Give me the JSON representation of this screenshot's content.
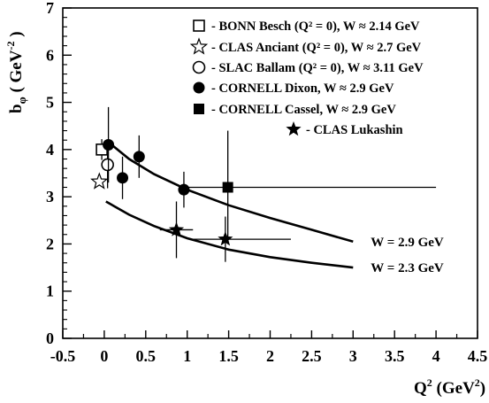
{
  "chart_data": {
    "type": "scatter",
    "xlim": [
      -0.5,
      4.5
    ],
    "ylim": [
      0,
      7
    ],
    "x_ticks": [
      "-0.5",
      "0",
      "0.5",
      "1",
      "1.5",
      "2",
      "2.5",
      "3",
      "3.5",
      "4",
      "4.5"
    ],
    "y_ticks": [
      "0",
      "1",
      "2",
      "3",
      "4",
      "5",
      "6",
      "7"
    ],
    "xlabel": {
      "base": "Q",
      "sup1": "2",
      "mid": " (GeV",
      "sup2": "2",
      "end": ")"
    },
    "ylabel": {
      "base": "b",
      "sub": "φ",
      "mid": " ( GeV",
      "sup": "-2",
      "end": " )"
    },
    "grid": false,
    "legend_position": "top-right",
    "series": [
      {
        "name": "- BONN Besch (Q² = 0), W ≈ 2.14 GeV",
        "marker": "open-square",
        "points": [
          {
            "x": -0.03,
            "y": 4.0,
            "yerr": 0.22
          }
        ]
      },
      {
        "name": "- CLAS Anciant (Q² = 0), W ≈ 2.7 GeV",
        "marker": "open-star",
        "points": [
          {
            "x": -0.06,
            "y": 3.32,
            "yerr": 0
          }
        ]
      },
      {
        "name": "- SLAC Ballam (Q² = 0), W ≈ 3.11 GeV",
        "marker": "open-circle",
        "points": [
          {
            "x": 0.04,
            "y": 3.68,
            "yerr": 0.5
          }
        ]
      },
      {
        "name": "- CORNELL Dixon, W ≈ 2.9 GeV",
        "marker": "filled-circle",
        "points": [
          {
            "x": 0.05,
            "y": 4.1,
            "yerr": 0.8
          },
          {
            "x": 0.22,
            "y": 3.4,
            "yerr": 0.45
          },
          {
            "x": 0.42,
            "y": 3.85,
            "yerr": 0.45
          },
          {
            "x": 0.96,
            "y": 3.15,
            "yerr": 0.38
          }
        ]
      },
      {
        "name": "- CORNELL Cassel, W ≈ 2.9 GeV",
        "marker": "filled-square",
        "points": [
          {
            "x": 1.49,
            "y": 3.2,
            "yerr": 1.2,
            "xerr": [
              1.0,
              4.0
            ]
          }
        ]
      },
      {
        "name": "- CLAS Lukashin",
        "marker": "filled-star",
        "points": [
          {
            "x": 0.87,
            "y": 2.3,
            "yerr": 0.6,
            "xerr": [
              0.67,
              1.07
            ]
          },
          {
            "x": 1.46,
            "y": 2.1,
            "yerr": 0.48,
            "xerr": [
              1.05,
              2.25
            ]
          }
        ]
      }
    ],
    "curves": [
      {
        "name": "W = 2.9 GeV",
        "x": [
          0.02,
          0.3,
          0.6,
          1.0,
          1.5,
          2.0,
          2.5,
          3.0
        ],
        "y": [
          4.2,
          3.8,
          3.48,
          3.15,
          2.82,
          2.55,
          2.3,
          2.05
        ]
      },
      {
        "name": "W = 2.3 GeV",
        "x": [
          0.02,
          0.3,
          0.6,
          1.0,
          1.5,
          2.0,
          2.5,
          3.0
        ],
        "y": [
          2.9,
          2.62,
          2.38,
          2.12,
          1.88,
          1.72,
          1.6,
          1.5
        ]
      }
    ]
  }
}
